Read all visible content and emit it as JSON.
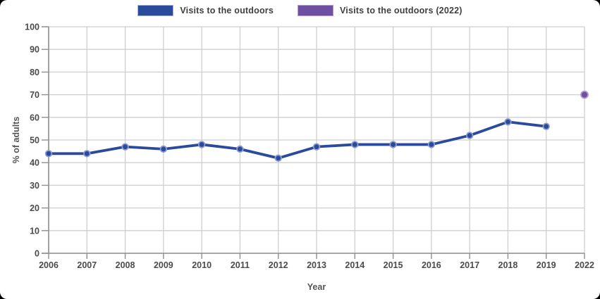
{
  "chart_data": {
    "type": "line",
    "title": "",
    "xlabel": "Year",
    "ylabel": "% of adults",
    "ylim": [
      0,
      100
    ],
    "ytick_step": 10,
    "grid": true,
    "legend_position": "top-center",
    "categories": [
      "2006",
      "2007",
      "2008",
      "2009",
      "2010",
      "2011",
      "2012",
      "2013",
      "2014",
      "2015",
      "2016",
      "2017",
      "2018",
      "2019",
      "2022"
    ],
    "series": [
      {
        "name": "Visits to the outdoors",
        "color": "#2a4a9b",
        "marker_ring": "#8d9bce",
        "values": [
          44,
          44,
          47,
          46,
          48,
          46,
          42,
          47,
          48,
          48,
          48,
          52,
          58,
          56,
          null
        ]
      },
      {
        "name": "Visits to the outdoors (2022)",
        "color": "#6f4f9f",
        "marker_ring": "#b49bd6",
        "values": [
          null,
          null,
          null,
          null,
          null,
          null,
          null,
          null,
          null,
          null,
          null,
          null,
          null,
          null,
          70
        ]
      }
    ],
    "colors": {
      "grid": "#cfcfcf",
      "axis": "#8f8f8f",
      "tick_label": "#4b4b4b",
      "axis_title": "#555555",
      "legend_text": "#3f3f3f",
      "background": "#ffffff",
      "corner": "#000000"
    }
  }
}
